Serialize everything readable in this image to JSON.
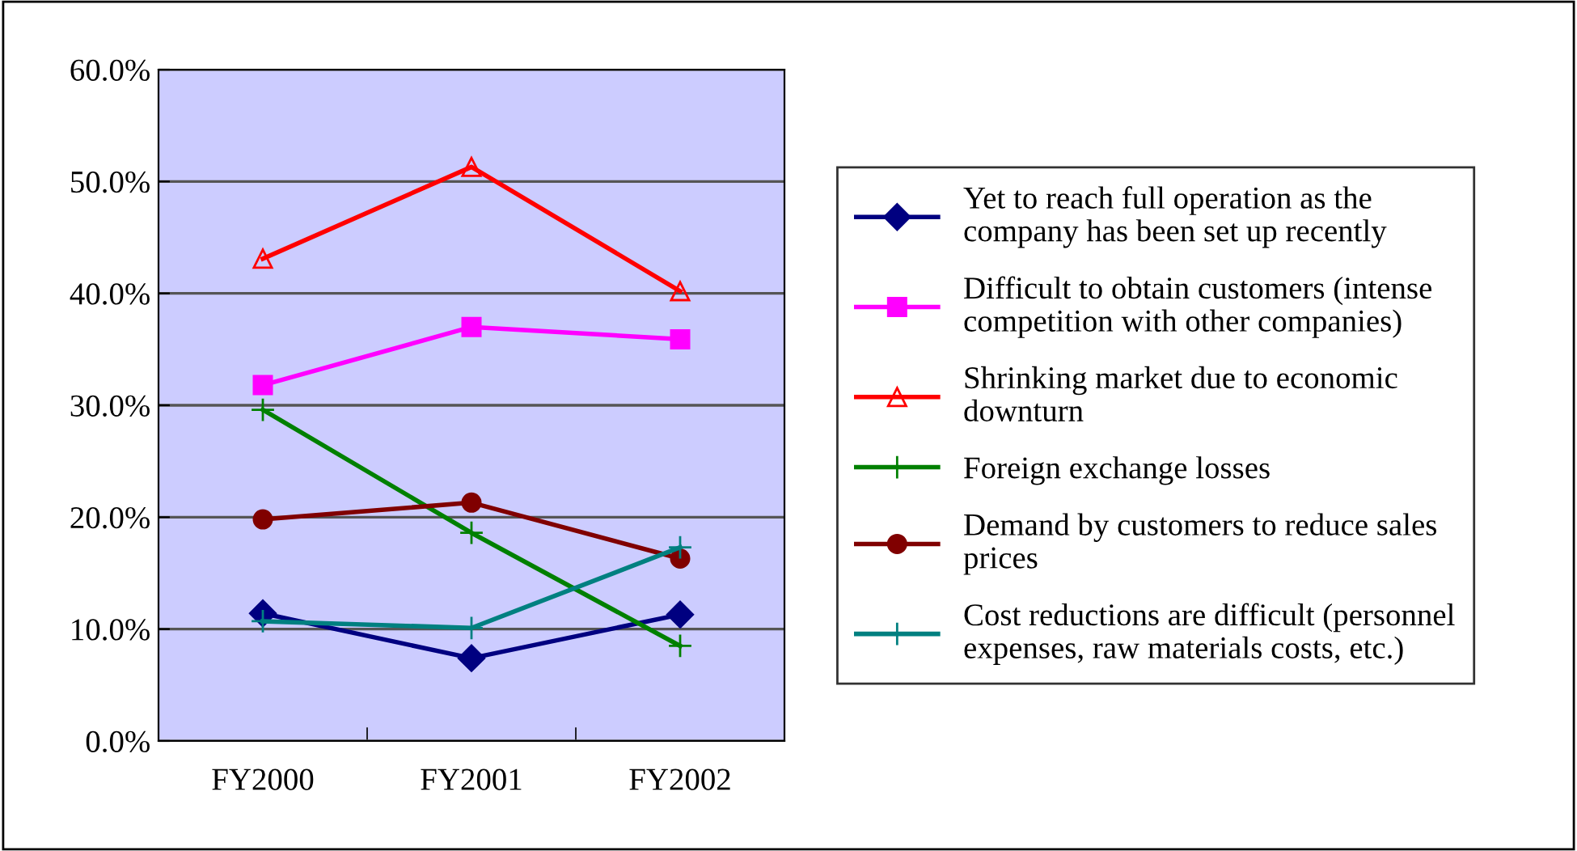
{
  "chart_data": {
    "type": "line",
    "categories": [
      "FY2000",
      "FY2001",
      "FY2002"
    ],
    "series": [
      {
        "name": "Yet to reach full operation as the company has been set up recently",
        "color": "#000080",
        "marker": "diamond",
        "values": [
          11.4,
          7.4,
          11.3
        ]
      },
      {
        "name": "Difficult to obtain customers (intense competition with other companies)",
        "color": "#ff00ff",
        "marker": "square",
        "values": [
          31.8,
          37.0,
          35.9
        ]
      },
      {
        "name": "Shrinking market due to economic downturn",
        "color": "#ff0000",
        "marker": "triangle",
        "values": [
          43.1,
          51.3,
          40.2
        ]
      },
      {
        "name": "Foreign exchange losses",
        "color": "#008000",
        "marker": "cross",
        "values": [
          29.6,
          18.6,
          8.5
        ]
      },
      {
        "name": "Demand by customers to reduce sales prices",
        "color": "#800000",
        "marker": "circle",
        "values": [
          19.8,
          21.3,
          16.3
        ]
      },
      {
        "name": "Cost reductions are difficult (personnel expenses, raw materials costs, etc.)",
        "color": "#008080",
        "marker": "cross",
        "values": [
          10.7,
          10.1,
          17.3
        ]
      }
    ],
    "ylim": [
      0,
      60
    ],
    "yticks": [
      {
        "value": 0,
        "label": "0.0%"
      },
      {
        "value": 10,
        "label": "10.0%"
      },
      {
        "value": 20,
        "label": "20.0%"
      },
      {
        "value": 30,
        "label": "30.0%"
      },
      {
        "value": 40,
        "label": "40.0%"
      },
      {
        "value": 50,
        "label": "50.0%"
      },
      {
        "value": 60,
        "label": "60.0%"
      }
    ],
    "grid": "y",
    "legend": "right",
    "line_style": "solid"
  }
}
